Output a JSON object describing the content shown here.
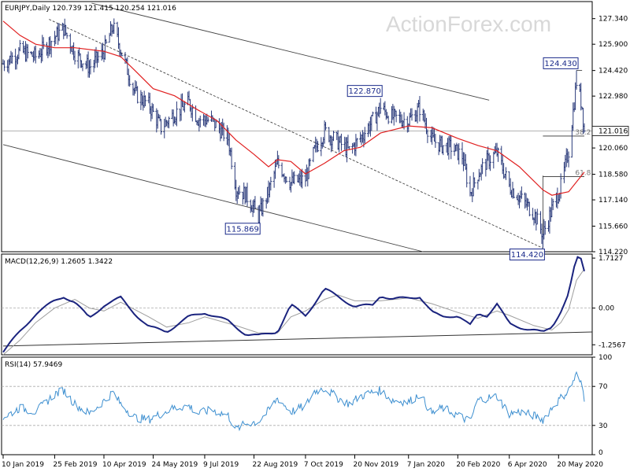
{
  "chart_data": {
    "type": "ohlc",
    "watermark": "ActionForex.com",
    "main": {
      "header": "EURJPY,Daily  120.739 121.415 120.254 121.016",
      "current_price": 121.016,
      "ylim": [
        114.22,
        128.3
      ],
      "y_ticks": [
        "127.340",
        "125.900",
        "124.420",
        "122.980",
        "121.016",
        "120.060",
        "118.580",
        "117.140",
        "115.660",
        "114.220"
      ],
      "tick_values": [
        127.34,
        125.9,
        124.42,
        122.98,
        121.016,
        120.06,
        118.58,
        117.14,
        115.66,
        114.22
      ],
      "annotations": [
        {
          "text": "115.869",
          "price": 115.869,
          "date": "2019-08-26"
        },
        {
          "text": "122.870",
          "price": 122.87,
          "date": "2019-12-13"
        },
        {
          "text": "124.430",
          "price": 124.43,
          "date": "2020-06-05"
        },
        {
          "text": "114.420",
          "price": 114.42,
          "date": "2020-05-06"
        }
      ],
      "fib_labels": [
        {
          "text": "38.2",
          "price": 120.73
        },
        {
          "text": "61.8",
          "price": 118.45
        }
      ],
      "series": [
        {
          "kind": "ohlc",
          "color": "#2a3a7a"
        },
        {
          "kind": "moving-average",
          "color": "#e02020"
        }
      ]
    },
    "macd": {
      "header": "MACD(12,26,9) 1.2605 1.3422",
      "ylim": [
        -1.6,
        1.85
      ],
      "y_ticks": [
        "1.7127",
        "0.00",
        "-1.2567"
      ],
      "tick_values": [
        1.7127,
        0.0,
        -1.2567
      ],
      "lines": [
        {
          "color": "#1a237e"
        },
        {
          "color": "#9e9e9e"
        }
      ]
    },
    "rsi": {
      "header": "RSI(14) 57.9469",
      "ylim": [
        0,
        100
      ],
      "y_ticks": [
        "100",
        "70",
        "30",
        "0"
      ],
      "tick_values": [
        100,
        70,
        30,
        0
      ],
      "line_color": "#3d8fd0"
    },
    "x_axis": {
      "dates": [
        "2019-01-10",
        "2019-02-25",
        "2019-04-10",
        "2019-05-24",
        "2019-07-09",
        "2019-08-22",
        "2019-10-07",
        "2019-11-20",
        "2020-01-07",
        "2020-02-20",
        "2020-04-06",
        "2020-05-20"
      ],
      "labels": [
        "10 Jan 2019",
        "25 Feb 2019",
        "10 Apr 2019",
        "24 May 2019",
        "9 Jul 2019",
        "22 Aug 2019",
        "7 Oct 2019",
        "20 Nov 2019",
        "7 Jan 2020",
        "20 Feb 2020",
        "6 Apr 2020",
        "20 May 2020"
      ]
    },
    "price_path": [
      [
        "2019-01-10",
        124.8
      ],
      [
        "2019-01-25",
        125.5
      ],
      [
        "2019-02-08",
        125.2
      ],
      [
        "2019-02-25",
        126.3
      ],
      [
        "2019-03-05",
        126.8
      ],
      [
        "2019-03-15",
        125.4
      ],
      [
        "2019-03-28",
        124.6
      ],
      [
        "2019-04-10",
        125.5
      ],
      [
        "2019-04-18",
        126.9
      ],
      [
        "2019-04-25",
        125.6
      ],
      [
        "2019-05-08",
        123.1
      ],
      [
        "2019-05-20",
        122.5
      ],
      [
        "2019-05-31",
        121.2
      ],
      [
        "2019-06-12",
        122.0
      ],
      [
        "2019-06-25",
        122.6
      ],
      [
        "2019-07-03",
        121.7
      ],
      [
        "2019-07-15",
        121.6
      ],
      [
        "2019-07-30",
        120.6
      ],
      [
        "2019-08-06",
        117.8
      ],
      [
        "2019-08-15",
        117.4
      ],
      [
        "2019-08-26",
        116.2
      ],
      [
        "2019-09-04",
        117.6
      ],
      [
        "2019-09-12",
        119.2
      ],
      [
        "2019-09-24",
        118.1
      ],
      [
        "2019-10-07",
        118.3
      ],
      [
        "2019-10-15",
        119.9
      ],
      [
        "2019-10-24",
        121.0
      ],
      [
        "2019-11-05",
        120.4
      ],
      [
        "2019-11-15",
        119.9
      ],
      [
        "2019-11-25",
        120.6
      ],
      [
        "2019-12-06",
        121.6
      ],
      [
        "2019-12-13",
        122.3
      ],
      [
        "2019-12-23",
        121.8
      ],
      [
        "2020-01-07",
        121.6
      ],
      [
        "2020-01-17",
        122.3
      ],
      [
        "2020-01-28",
        120.5
      ],
      [
        "2020-02-06",
        120.2
      ],
      [
        "2020-02-14",
        120.1
      ],
      [
        "2020-02-24",
        119.6
      ],
      [
        "2020-03-02",
        117.5
      ],
      [
        "2020-03-09",
        118.6
      ],
      [
        "2020-03-17",
        119.3
      ],
      [
        "2020-03-26",
        119.8
      ],
      [
        "2020-04-06",
        117.9
      ],
      [
        "2020-04-15",
        117.3
      ],
      [
        "2020-04-28",
        116.4
      ],
      [
        "2020-05-06",
        115.2
      ],
      [
        "2020-05-14",
        116.6
      ],
      [
        "2020-05-22",
        117.9
      ],
      [
        "2020-05-29",
        119.9
      ],
      [
        "2020-06-05",
        123.8
      ],
      [
        "2020-06-10",
        122.4
      ],
      [
        "2020-06-12",
        121.0
      ]
    ],
    "ma_path": [
      [
        "2019-01-10",
        127.2
      ],
      [
        "2019-01-25",
        126.4
      ],
      [
        "2019-02-08",
        125.9
      ],
      [
        "2019-02-25",
        125.7
      ],
      [
        "2019-03-15",
        125.7
      ],
      [
        "2019-04-10",
        125.5
      ],
      [
        "2019-04-25",
        125.2
      ],
      [
        "2019-05-08",
        124.4
      ],
      [
        "2019-05-24",
        123.4
      ],
      [
        "2019-06-12",
        123.0
      ],
      [
        "2019-07-03",
        122.2
      ],
      [
        "2019-07-20",
        121.6
      ],
      [
        "2019-08-06",
        120.5
      ],
      [
        "2019-08-22",
        119.7
      ],
      [
        "2019-09-04",
        119.0
      ],
      [
        "2019-09-12",
        119.4
      ],
      [
        "2019-09-24",
        119.3
      ],
      [
        "2019-10-07",
        118.6
      ],
      [
        "2019-10-24",
        119.2
      ],
      [
        "2019-11-10",
        119.9
      ],
      [
        "2019-11-25",
        120.1
      ],
      [
        "2019-12-13",
        120.9
      ],
      [
        "2020-01-07",
        121.3
      ],
      [
        "2020-01-28",
        121.2
      ],
      [
        "2020-02-20",
        120.6
      ],
      [
        "2020-03-09",
        120.2
      ],
      [
        "2020-03-26",
        119.9
      ],
      [
        "2020-04-15",
        119.0
      ],
      [
        "2020-05-06",
        117.7
      ],
      [
        "2020-05-14",
        117.4
      ],
      [
        "2020-05-29",
        117.6
      ],
      [
        "2020-06-12",
        118.7
      ]
    ],
    "macd_path": [
      [
        "2019-01-10",
        -1.5
      ],
      [
        "2019-01-25",
        -0.8
      ],
      [
        "2019-02-08",
        -0.2
      ],
      [
        "2019-02-25",
        0.25
      ],
      [
        "2019-03-05",
        0.4
      ],
      [
        "2019-03-15",
        0.2
      ],
      [
        "2019-03-28",
        -0.35
      ],
      [
        "2019-04-10",
        0.1
      ],
      [
        "2019-04-25",
        0.35
      ],
      [
        "2019-05-08",
        -0.2
      ],
      [
        "2019-05-20",
        -0.65
      ],
      [
        "2019-06-05",
        -0.8
      ],
      [
        "2019-06-25",
        -0.3
      ],
      [
        "2019-07-09",
        -0.15
      ],
      [
        "2019-07-30",
        -0.45
      ],
      [
        "2019-08-15",
        -0.9
      ],
      [
        "2019-08-26",
        -0.95
      ],
      [
        "2019-09-12",
        -0.8
      ],
      [
        "2019-09-24",
        0.1
      ],
      [
        "2019-10-07",
        -0.25
      ],
      [
        "2019-10-24",
        0.65
      ],
      [
        "2019-11-05",
        0.4
      ],
      [
        "2019-11-20",
        0.05
      ],
      [
        "2019-12-06",
        0.1
      ],
      [
        "2019-12-13",
        0.45
      ],
      [
        "2019-12-23",
        0.3
      ],
      [
        "2020-01-07",
        0.35
      ],
      [
        "2020-01-17",
        0.4
      ],
      [
        "2020-01-28",
        -0.15
      ],
      [
        "2020-02-06",
        -0.3
      ],
      [
        "2020-02-20",
        -0.25
      ],
      [
        "2020-03-02",
        -0.6
      ],
      [
        "2020-03-09",
        -0.2
      ],
      [
        "2020-03-17",
        -0.25
      ],
      [
        "2020-03-26",
        0.15
      ],
      [
        "2020-04-06",
        -0.55
      ],
      [
        "2020-04-15",
        -0.65
      ],
      [
        "2020-04-28",
        -0.75
      ],
      [
        "2020-05-06",
        -0.85
      ],
      [
        "2020-05-14",
        -0.65
      ],
      [
        "2020-05-22",
        -0.1
      ],
      [
        "2020-05-29",
        0.5
      ],
      [
        "2020-06-05",
        1.72
      ],
      [
        "2020-06-10",
        1.65
      ],
      [
        "2020-06-12",
        1.26
      ]
    ],
    "signal_path": [
      [
        "2019-01-10",
        -1.6
      ],
      [
        "2019-01-25",
        -1.1
      ],
      [
        "2019-02-08",
        -0.5
      ],
      [
        "2019-02-25",
        0.0
      ],
      [
        "2019-03-15",
        0.3
      ],
      [
        "2019-03-28",
        0.0
      ],
      [
        "2019-04-10",
        -0.1
      ],
      [
        "2019-04-25",
        0.2
      ],
      [
        "2019-05-20",
        -0.3
      ],
      [
        "2019-06-05",
        -0.65
      ],
      [
        "2019-06-25",
        -0.5
      ],
      [
        "2019-07-09",
        -0.3
      ],
      [
        "2019-08-06",
        -0.6
      ],
      [
        "2019-08-26",
        -0.85
      ],
      [
        "2019-09-12",
        -0.85
      ],
      [
        "2019-09-24",
        -0.3
      ],
      [
        "2019-10-07",
        -0.1
      ],
      [
        "2019-10-24",
        0.3
      ],
      [
        "2019-11-05",
        0.45
      ],
      [
        "2019-11-20",
        0.25
      ],
      [
        "2019-12-13",
        0.25
      ],
      [
        "2020-01-07",
        0.35
      ],
      [
        "2020-01-28",
        0.15
      ],
      [
        "2020-02-20",
        -0.15
      ],
      [
        "2020-03-09",
        -0.35
      ],
      [
        "2020-03-26",
        -0.1
      ],
      [
        "2020-04-06",
        -0.25
      ],
      [
        "2020-04-28",
        -0.6
      ],
      [
        "2020-05-14",
        -0.75
      ],
      [
        "2020-05-22",
        -0.5
      ],
      [
        "2020-05-29",
        -0.05
      ],
      [
        "2020-06-05",
        0.95
      ],
      [
        "2020-06-12",
        1.34
      ]
    ],
    "rsi_path": [
      [
        "2019-01-10",
        38
      ],
      [
        "2019-01-25",
        48
      ],
      [
        "2019-02-08",
        44
      ],
      [
        "2019-02-25",
        62
      ],
      [
        "2019-03-05",
        66
      ],
      [
        "2019-03-15",
        52
      ],
      [
        "2019-03-28",
        42
      ],
      [
        "2019-04-10",
        55
      ],
      [
        "2019-04-18",
        64
      ],
      [
        "2019-04-25",
        52
      ],
      [
        "2019-05-08",
        38
      ],
      [
        "2019-05-20",
        36
      ],
      [
        "2019-05-31",
        42
      ],
      [
        "2019-06-12",
        48
      ],
      [
        "2019-06-25",
        50
      ],
      [
        "2019-07-03",
        42
      ],
      [
        "2019-07-15",
        46
      ],
      [
        "2019-07-30",
        40
      ],
      [
        "2019-08-06",
        26
      ],
      [
        "2019-08-15",
        32
      ],
      [
        "2019-08-26",
        34
      ],
      [
        "2019-09-04",
        45
      ],
      [
        "2019-09-12",
        58
      ],
      [
        "2019-09-24",
        44
      ],
      [
        "2019-10-07",
        50
      ],
      [
        "2019-10-15",
        65
      ],
      [
        "2019-10-24",
        68
      ],
      [
        "2019-11-05",
        58
      ],
      [
        "2019-11-15",
        52
      ],
      [
        "2019-11-25",
        60
      ],
      [
        "2019-12-06",
        64
      ],
      [
        "2019-12-13",
        66
      ],
      [
        "2019-12-23",
        56
      ],
      [
        "2020-01-07",
        54
      ],
      [
        "2020-01-17",
        62
      ],
      [
        "2020-01-28",
        42
      ],
      [
        "2020-02-06",
        48
      ],
      [
        "2020-02-14",
        44
      ],
      [
        "2020-02-24",
        38
      ],
      [
        "2020-03-02",
        34
      ],
      [
        "2020-03-09",
        56
      ],
      [
        "2020-03-17",
        58
      ],
      [
        "2020-03-26",
        60
      ],
      [
        "2020-04-06",
        42
      ],
      [
        "2020-04-15",
        44
      ],
      [
        "2020-04-28",
        40
      ],
      [
        "2020-05-06",
        36
      ],
      [
        "2020-05-14",
        48
      ],
      [
        "2020-05-22",
        58
      ],
      [
        "2020-05-29",
        66
      ],
      [
        "2020-06-05",
        82
      ],
      [
        "2020-06-10",
        70
      ],
      [
        "2020-06-12",
        58
      ]
    ]
  }
}
